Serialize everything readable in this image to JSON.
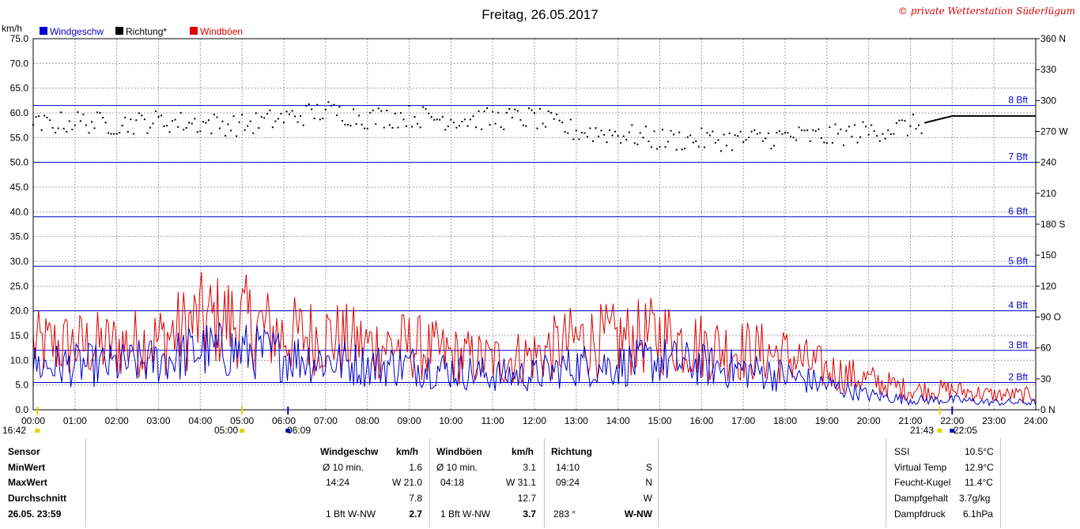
{
  "header": {
    "title": "Freitag, 26.05.2017",
    "copyright": "© private Wetterstation Süderlügum",
    "unit": "km/h",
    "legend": [
      {
        "label": "Windgeschw",
        "color": "#0000cc"
      },
      {
        "label": "Richtung*",
        "color": "#000000"
      },
      {
        "label": "Windböen",
        "color": "#dd0000"
      }
    ]
  },
  "chart_data": {
    "type": "line",
    "title": "Freitag, 26.05.2017",
    "ylabel": "km/h",
    "ylim": [
      0,
      75
    ],
    "y_ticks": [
      "0.0",
      "5.0",
      "10.0",
      "15.0",
      "20.0",
      "25.0",
      "30.0",
      "35.0",
      "40.0",
      "45.0",
      "50.0",
      "55.0",
      "60.0",
      "65.0",
      "70.0",
      "75.0"
    ],
    "y2lim": [
      0,
      360
    ],
    "y2_ticks": [
      "0 N",
      "30",
      "60",
      "90 O",
      "120",
      "150",
      "180 S",
      "210",
      "240",
      "270 W",
      "300",
      "330",
      "360 N"
    ],
    "x_ticks": [
      "00:00",
      "01:00",
      "02:00",
      "03:00",
      "04:00",
      "05:00",
      "06:00",
      "07:00",
      "08:00",
      "09:00",
      "10:00",
      "11:00",
      "12:00",
      "13:00",
      "14:00",
      "15:00",
      "16:00",
      "17:00",
      "18:00",
      "19:00",
      "20:00",
      "21:00",
      "22:00",
      "23:00",
      "24:00"
    ],
    "grid": true,
    "legend_position": "top-left",
    "beaufort_lines": [
      {
        "label": "2 Bft",
        "value": 5.5
      },
      {
        "label": "3 Bft",
        "value": 12
      },
      {
        "label": "4 Bft",
        "value": 20
      },
      {
        "label": "5 Bft",
        "value": 29
      },
      {
        "label": "6 Bft",
        "value": 39
      },
      {
        "label": "7 Bft",
        "value": 50
      },
      {
        "label": "8 Bft",
        "value": 61.5
      }
    ],
    "hours": [
      0,
      1,
      2,
      3,
      4,
      5,
      6,
      7,
      8,
      9,
      10,
      11,
      12,
      13,
      14,
      15,
      16,
      17,
      18,
      19,
      20,
      21,
      22,
      23,
      24
    ],
    "series": [
      {
        "name": "Windgeschw",
        "color": "#0000cc",
        "axis": "left",
        "values": [
          9,
          9,
          9,
          10,
          12,
          12,
          11,
          10,
          9,
          9,
          8,
          7,
          7,
          9,
          9,
          10,
          9,
          8,
          7,
          5,
          3,
          2,
          2,
          1.5,
          1.5
        ]
      },
      {
        "name": "Windböen",
        "color": "#dd0000",
        "axis": "left",
        "values": [
          13,
          13,
          13,
          14,
          18,
          18,
          15,
          15,
          13,
          13,
          11,
          10,
          11,
          14,
          14,
          15,
          13,
          12,
          11,
          8,
          6,
          4,
          4,
          3,
          3
        ]
      },
      {
        "name": "Richtung*",
        "color": "#000000",
        "axis": "right",
        "values": [
          275,
          280,
          277,
          280,
          278,
          276,
          283,
          290,
          283,
          285,
          282,
          282,
          283,
          270,
          268,
          262,
          262,
          262,
          265,
          265,
          270,
          275,
          285,
          285,
          285
        ]
      }
    ],
    "bottom_markers": [
      {
        "time": "16:42"
      },
      {
        "time": "05:00"
      },
      {
        "time": "06:09"
      },
      {
        "time": "21:43"
      },
      {
        "time": "22:05"
      }
    ]
  },
  "stats": {
    "sensor_label": "Sensor",
    "min_label": "MinWert",
    "max_label": "MaxWert",
    "avg_label": "Durchschnitt",
    "date_label": "26.05. 23:59",
    "wind": {
      "header": "Windgeschw",
      "unit": "km/h",
      "min_desc": "Ø 10 min.",
      "min_val": "1.6",
      "max_time": "14:24",
      "max_val": "W 21.0",
      "avg": "7.8",
      "bft": "1 Bft W-NW",
      "current": "2.7"
    },
    "gust": {
      "header": "Windböen",
      "unit": "km/h",
      "min_desc": "Ø 10 min.",
      "min_val": "3.1",
      "max_time": "04:18",
      "max_val": "W 31.1",
      "avg": "12.7",
      "bft": "1 Bft W-NW",
      "current": "3.7"
    },
    "dir": {
      "header": "Richtung",
      "min_time": "14:10",
      "min_val": "S",
      "max_time": "09:24",
      "max_val": "N",
      "avg": "W",
      "current_deg": "283 °",
      "current": "W-NW"
    },
    "extra": [
      {
        "label": "SSI",
        "value": "10.5°C"
      },
      {
        "label": "Virtual Temp",
        "value": "12.9°C"
      },
      {
        "label": "Feucht-Kugel",
        "value": "11.4°C"
      },
      {
        "label": "Dampfgehalt",
        "value": "3.7g/kg"
      },
      {
        "label": "Dampfdruck",
        "value": "6.1hPa"
      }
    ]
  }
}
